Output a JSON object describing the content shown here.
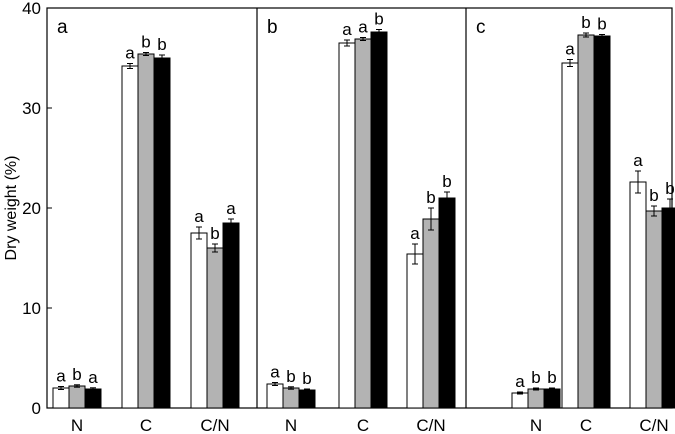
{
  "chart_data": {
    "type": "bar",
    "ylabel": "Dry weight (%)",
    "ylim": [
      0,
      40
    ],
    "yticks": [
      "0",
      "10",
      "20",
      "30",
      "40"
    ],
    "grid": false,
    "legend": "none",
    "categories": [
      "N",
      "C",
      "C/N"
    ],
    "series_colors": [
      "#ffffff",
      "#b3b3b3",
      "#000000"
    ],
    "panels": [
      {
        "label": "a",
        "series": [
          {
            "values": [
              2.0,
              34.2,
              17.5
            ],
            "errors": [
              0.15,
              0.25,
              0.6
            ],
            "letters": [
              "a",
              "a",
              "a"
            ]
          },
          {
            "values": [
              2.2,
              35.4,
              16.0
            ],
            "errors": [
              0.12,
              0.15,
              0.4
            ],
            "letters": [
              "b",
              "b",
              "b"
            ]
          },
          {
            "values": [
              1.9,
              35.0,
              18.5
            ],
            "errors": [
              0.12,
              0.3,
              0.4
            ],
            "letters": [
              "a",
              "b",
              "a"
            ]
          }
        ]
      },
      {
        "label": "b",
        "series": [
          {
            "values": [
              2.4,
              36.5,
              15.4
            ],
            "errors": [
              0.15,
              0.3,
              1.0
            ],
            "letters": [
              "a",
              "a",
              "a"
            ]
          },
          {
            "values": [
              2.0,
              36.9,
              18.9
            ],
            "errors": [
              0.12,
              0.15,
              1.1
            ],
            "letters": [
              "b",
              "a",
              "b"
            ]
          },
          {
            "values": [
              1.8,
              37.6,
              21.0
            ],
            "errors": [
              0.1,
              0.25,
              0.6
            ],
            "letters": [
              "b",
              "b",
              "b"
            ]
          }
        ]
      },
      {
        "label": "c",
        "series": [
          {
            "values": [
              1.5,
              34.5,
              22.6
            ],
            "errors": [
              0.1,
              0.35,
              1.1
            ],
            "letters": [
              "a",
              "a",
              "a"
            ]
          },
          {
            "values": [
              1.9,
              37.3,
              19.7
            ],
            "errors": [
              0.1,
              0.2,
              0.5
            ],
            "letters": [
              "b",
              "b",
              "b"
            ]
          },
          {
            "values": [
              1.9,
              37.2,
              20.0
            ],
            "errors": [
              0.1,
              0.15,
              0.9
            ],
            "letters": [
              "b",
              "b",
              "b"
            ]
          }
        ]
      }
    ]
  }
}
